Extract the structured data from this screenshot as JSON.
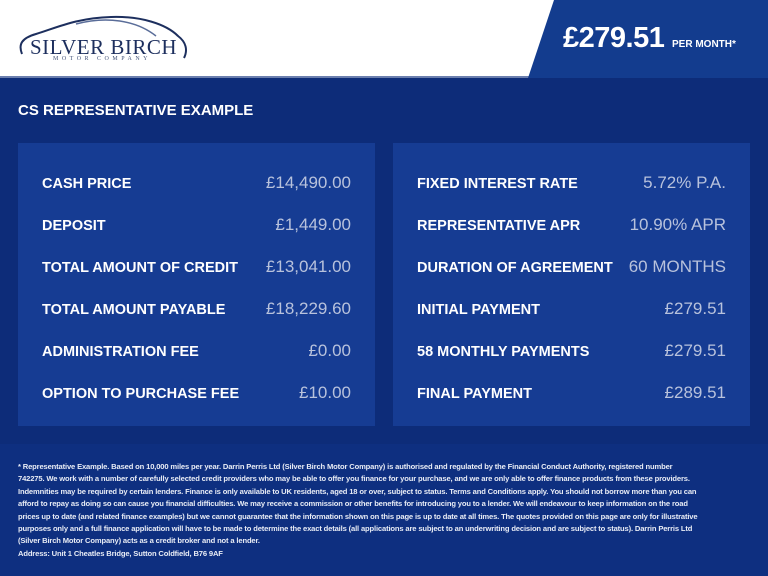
{
  "header": {
    "brand_name": "SILVER BIRCH",
    "brand_sub": "MOTOR COMPANY",
    "price": "£279.51",
    "price_suffix": "PER MONTH*"
  },
  "title": "CS REPRESENTATIVE EXAMPLE",
  "left": [
    {
      "label": "CASH PRICE",
      "value": "£14,490.00"
    },
    {
      "label": "DEPOSIT",
      "value": "£1,449.00"
    },
    {
      "label": "TOTAL AMOUNT OF CREDIT",
      "value": "£13,041.00"
    },
    {
      "label": "TOTAL AMOUNT PAYABLE",
      "value": "£18,229.60"
    },
    {
      "label": "ADMINISTRATION FEE",
      "value": "£0.00"
    },
    {
      "label": "OPTION TO PURCHASE FEE",
      "value": "£10.00"
    }
  ],
  "right": [
    {
      "label": "FIXED INTEREST RATE",
      "value": "5.72% P.A."
    },
    {
      "label": "REPRESENTATIVE APR",
      "value": "10.90% APR"
    },
    {
      "label": "DURATION OF AGREEMENT",
      "value": "60 MONTHS"
    },
    {
      "label": "INITIAL PAYMENT",
      "value": "£279.51"
    },
    {
      "label": "58 MONTHLY PAYMENTS",
      "value": "£279.51"
    },
    {
      "label": "FINAL PAYMENT",
      "value": "£289.51"
    }
  ],
  "disclaimer": "* Representative Example. Based on 10,000 miles per year. Darrin Perris Ltd (Silver Birch Motor Company) is authorised and regulated by the Financial Conduct Authority, registered number 742275. We work with a number of carefully selected credit providers who may be able to offer you finance for your purchase, and we are only able to offer finance products from these providers. Indemnities may be required by certain lenders. Finance is only available to UK residents, aged 18 or over, subject to status. Terms and Conditions apply. You should not borrow more than you can afford to repay as doing so can cause you financial difficulties. We may receive a commission or other benefits for introducing you to a lender. We will endeavour to keep information on the road prices up to date (and related finance examples) but we cannot guarantee that the information shown on this page is up to date at all times. The quotes provided on this page are only for illustrative purposes only and a full finance application will have to be made to determine the exact details (all applications are subject to an underwriting decision and are subject to status). Darrin Perris Ltd (Silver Birch Motor Company) acts as a credit broker and not a lender.",
  "address": "Address: Unit 1 Cheatles Bridge, Sutton Coldfield, B76 9AF"
}
